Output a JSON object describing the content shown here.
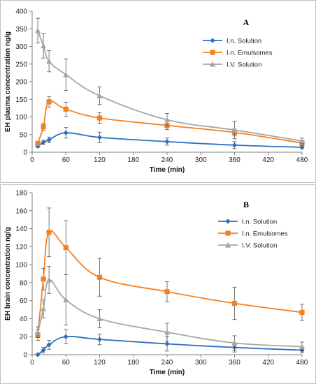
{
  "chart_data": [
    {
      "type": "line",
      "panel_label": "A",
      "xlabel": "Time (min)",
      "ylabel": "EH plasma concentration ng/g",
      "xlim": [
        0,
        480
      ],
      "ylim": [
        0,
        400
      ],
      "xticks": [
        0,
        60,
        120,
        180,
        240,
        300,
        360,
        420,
        480
      ],
      "yticks": [
        0,
        50,
        100,
        150,
        200,
        250,
        300,
        350,
        400
      ],
      "legend_position": "top-right",
      "grid": false,
      "series": [
        {
          "name": "I.n. Solution",
          "color": "#2e6fc0",
          "marker": "diamond",
          "x": [
            10,
            20,
            30,
            60,
            120,
            240,
            360,
            480
          ],
          "y": [
            17,
            28,
            35,
            55,
            42,
            30,
            20,
            14
          ],
          "err": [
            3,
            6,
            8,
            15,
            15,
            10,
            10,
            4
          ]
        },
        {
          "name": "I.n. Emulsomes",
          "color": "#f58220",
          "marker": "square",
          "x": [
            10,
            20,
            30,
            60,
            120,
            240,
            360,
            480
          ],
          "y": [
            25,
            72,
            143,
            122,
            97,
            76,
            56,
            26
          ],
          "err": [
            5,
            10,
            15,
            20,
            15,
            12,
            10,
            5
          ]
        },
        {
          "name": "I.V. Solution",
          "color": "#a6a6a6",
          "marker": "triangle",
          "x": [
            10,
            20,
            30,
            60,
            120,
            240,
            360,
            480
          ],
          "y": [
            345,
            302,
            258,
            220,
            160,
            92,
            63,
            32
          ],
          "err": [
            35,
            35,
            30,
            45,
            25,
            18,
            25,
            8
          ]
        }
      ]
    },
    {
      "type": "line",
      "panel_label": "B",
      "xlabel": "Time (min)",
      "ylabel": "EH brain concentration ng/g",
      "xlim": [
        0,
        480
      ],
      "ylim": [
        0,
        180
      ],
      "xticks": [
        0,
        60,
        120,
        180,
        240,
        300,
        360,
        420,
        480
      ],
      "yticks": [
        0,
        20,
        40,
        60,
        80,
        100,
        120,
        140,
        160,
        180
      ],
      "legend_position": "top-right",
      "grid": false,
      "series": [
        {
          "name": "I.n. Solution",
          "color": "#2e6fc0",
          "marker": "diamond",
          "x": [
            10,
            20,
            30,
            60,
            120,
            240,
            360,
            480
          ],
          "y": [
            0,
            5,
            11,
            20,
            17,
            12,
            8,
            5
          ],
          "err": [
            1,
            3,
            5,
            8,
            6,
            8,
            5,
            3
          ]
        },
        {
          "name": "I.n. Emulsomes",
          "color": "#f58220",
          "marker": "square",
          "x": [
            10,
            20,
            30,
            60,
            120,
            240,
            360,
            480
          ],
          "y": [
            22,
            84,
            136,
            119,
            86,
            70,
            57,
            47
          ],
          "err": [
            6,
            12,
            27,
            30,
            21,
            11,
            18,
            9
          ]
        },
        {
          "name": "I.V. Solution",
          "color": "#a6a6a6",
          "marker": "triangle",
          "x": [
            10,
            20,
            30,
            60,
            120,
            240,
            360,
            480
          ],
          "y": [
            25,
            51,
            83,
            61,
            40,
            25,
            13,
            9
          ],
          "err": [
            6,
            10,
            15,
            28,
            10,
            10,
            8,
            5
          ]
        }
      ]
    }
  ]
}
